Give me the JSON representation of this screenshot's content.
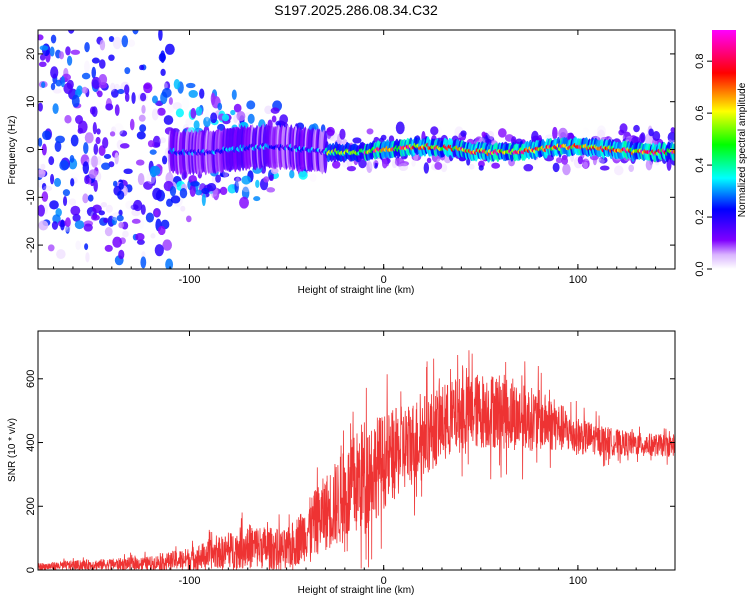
{
  "title": "S197.2025.286.08.34.C32",
  "chart_data": [
    {
      "type": "heatmap",
      "name": "spectrogram",
      "xlabel": "Height of straight line (km)",
      "ylabel": "Frequency (Hz)",
      "xlim": [
        -178,
        150
      ],
      "ylim": [
        -25,
        25
      ],
      "x_ticks": [
        -100,
        0,
        100
      ],
      "y_ticks": [
        -20,
        -10,
        0,
        10,
        20
      ],
      "colorbar": {
        "label": "Normalized spectral amplitude",
        "range": [
          0.0,
          0.92
        ],
        "ticks": [
          0.0,
          0.2,
          0.4,
          0.6,
          0.8
        ],
        "tick_labels": [
          "0.0",
          "0.2",
          "0.4",
          "0.6",
          "0.8"
        ],
        "colormap": [
          "#ffffff",
          "#8000ff",
          "#0000ff",
          "#00ffff",
          "#00ff00",
          "#ffff00",
          "#ff0000",
          "#ff00ff"
        ]
      },
      "description_points": {
        "noise_region_x": [
          -178,
          -110
        ],
        "transition_region_x": [
          -110,
          -30
        ],
        "signal_line_freq_hz": 0,
        "signal_band_halfwidth_hz": 2,
        "peak_amplitude": 0.9
      }
    },
    {
      "type": "line",
      "name": "snr",
      "xlabel": "Height of straight line (km)",
      "ylabel": "SNR (10 * v/v)",
      "xlim": [
        -178,
        150
      ],
      "ylim": [
        0,
        750
      ],
      "x_ticks": [
        -100,
        0,
        100
      ],
      "y_ticks": [
        0,
        200,
        400,
        600
      ],
      "color": "#ee3333",
      "envelope": {
        "x": [
          -178,
          -160,
          -140,
          -120,
          -100,
          -80,
          -70,
          -60,
          -50,
          -40,
          -30,
          -20,
          -10,
          0,
          10,
          20,
          30,
          40,
          50,
          60,
          70,
          80,
          90,
          100,
          110,
          120,
          130,
          140,
          150
        ],
        "mean": [
          10,
          15,
          18,
          22,
          35,
          60,
          75,
          70,
          60,
          120,
          180,
          230,
          300,
          340,
          380,
          420,
          460,
          490,
          500,
          500,
          480,
          470,
          450,
          420,
          410,
          400,
          395,
          392,
          390
        ],
        "spread": [
          20,
          25,
          30,
          35,
          60,
          90,
          120,
          110,
          110,
          150,
          200,
          250,
          300,
          250,
          230,
          220,
          200,
          200,
          200,
          200,
          180,
          160,
          130,
          100,
          80,
          70,
          60,
          60,
          55
        ]
      }
    }
  ]
}
